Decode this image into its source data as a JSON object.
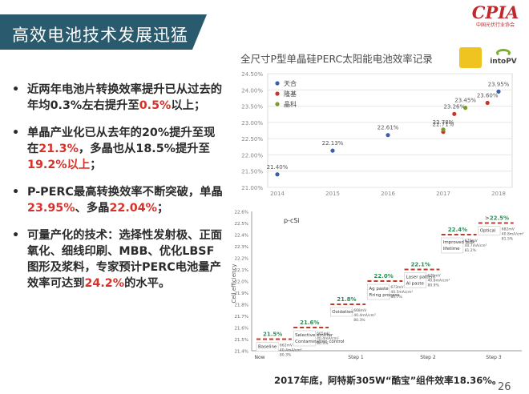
{
  "slide": {
    "title": "高效电池技术发展迅猛",
    "logo_text": "CPIA",
    "logo_subtext": "中国光伏行业协会",
    "page_number": "26",
    "caption": "2017年底，阿特斯305W“酷宝”组件效率18.36%。",
    "colors": {
      "banner": "#2a5a6e",
      "highlight": "#d5322a",
      "logo": "#c0282d"
    }
  },
  "bullets": [
    [
      {
        "t": "近两年电池片转换效率提升已从过去的年均0.3%左右提升至"
      },
      {
        "t": "0.5%",
        "hl": true
      },
      {
        "t": "以上；"
      }
    ],
    [
      {
        "t": "单晶产业化已从去年的20%提升至现在"
      },
      {
        "t": "21.3%",
        "hl": true
      },
      {
        "t": "，多晶也从18.5%提升至"
      },
      {
        "t": "19.2%以上",
        "hl": true
      },
      {
        "t": "；"
      }
    ],
    [
      {
        "t": "P-PERC最高转换效率不断突破，单晶"
      },
      {
        "t": "23.95%",
        "hl": true
      },
      {
        "t": "、多晶"
      },
      {
        "t": "22.04%",
        "hl": true
      },
      {
        "t": "；"
      }
    ],
    [
      {
        "t": "可量产化的技术：选择性发射极、正面氧化、细线印刷、MBB、优化LBSF图形及浆料，专家预计PERC电池量产效率可达到"
      },
      {
        "t": "24.2%",
        "hl": true
      },
      {
        "t": "的水平。"
      }
    ]
  ],
  "chart_data": [
    {
      "type": "scatter",
      "title": "全尺寸P型单晶硅PERC太阳能电池效率记录",
      "logo_text": "intoPV",
      "ylim": [
        21.0,
        24.5
      ],
      "yticks": [
        "24.50%",
        "24.00%",
        "23.50%",
        "23.00%",
        "22.50%",
        "22.00%",
        "21.50%",
        "21.00%"
      ],
      "xticks": [
        "2014",
        "2015",
        "2016",
        "2017",
        "2018"
      ],
      "legend_position": "top-left",
      "series": [
        {
          "name": "天合",
          "color": "#3d5fa8"
        },
        {
          "name": "隆基",
          "color": "#c0392b"
        },
        {
          "name": "晶科",
          "color": "#7a9c2c"
        }
      ],
      "points": [
        {
          "series": "天合",
          "x": 2014.0,
          "y": 21.4,
          "label": "21.40%"
        },
        {
          "series": "天合",
          "x": 2015.0,
          "y": 22.13,
          "label": "22.13%"
        },
        {
          "series": "天合",
          "x": 2016.0,
          "y": 22.61,
          "label": "22.61%"
        },
        {
          "series": "天合",
          "x": 2018.0,
          "y": 23.95,
          "label": "23.95%"
        },
        {
          "series": "隆基",
          "x": 2017.0,
          "y": 22.71,
          "label": "22.71%"
        },
        {
          "series": "隆基",
          "x": 2017.2,
          "y": 23.26,
          "label": "23.26%"
        },
        {
          "series": "隆基",
          "x": 2017.8,
          "y": 23.6,
          "label": "23.60%"
        },
        {
          "series": "晶科",
          "x": 2017.0,
          "y": 22.78,
          "label": "22.78%"
        },
        {
          "series": "晶科",
          "x": 2017.4,
          "y": 23.45,
          "label": "23.45%"
        }
      ]
    },
    {
      "type": "bar",
      "subtitle": "p-cSi",
      "ylabel": "Cell efficiency",
      "ylim": [
        21.4,
        22.6
      ],
      "yticks": [
        "22.6%",
        "22.5%",
        "22.4%",
        "22.3%",
        "22.2%",
        "22.1%",
        "22.0%",
        "21.9%",
        "21.8%",
        "21.7%",
        "21.6%",
        "21.5%",
        "21.4%"
      ],
      "xticks": [
        "Now",
        "Step 1",
        "Step 2",
        "Step 3"
      ],
      "steps": [
        {
          "value": "21.5%",
          "y": 21.5,
          "label": "Baseline",
          "detail": [
            "662mV",
            "40.4mA/cm²",
            "80.3%"
          ]
        },
        {
          "value": "21.6%",
          "y": 21.6,
          "label": "Selective emitter\nContamination control",
          "detail": [
            "665mV",
            "40.4mA/cm²",
            "80.3%"
          ]
        },
        {
          "value": "21.8%",
          "y": 21.8,
          "label": "Oxidation",
          "detail": [
            "668mV",
            "40.4mA/cm²",
            "80.3%"
          ]
        },
        {
          "value": "22.0%",
          "y": 22.0,
          "label": "Ag paste\nFiring process",
          "detail": [
            "673mV",
            "40.5mA/cm²",
            "80.7%"
          ]
        },
        {
          "value": "22.1%",
          "y": 22.1,
          "label": "Laser pattern\nAl paste",
          "detail": [
            "675mV",
            "40.6mA/cm²",
            "80.9%"
          ]
        },
        {
          "value": "22.4%",
          "y": 22.4,
          "label": "Improved bulk\nlifetime",
          "detail": [
            "678mV",
            "40.7mA/cm²",
            "81.2%"
          ]
        },
        {
          "value": ">22.5%",
          "y": 22.5,
          "label": "Optical",
          "detail": [
            "682mV",
            "40.8mA/cm²",
            "81.5%"
          ]
        }
      ]
    }
  ]
}
